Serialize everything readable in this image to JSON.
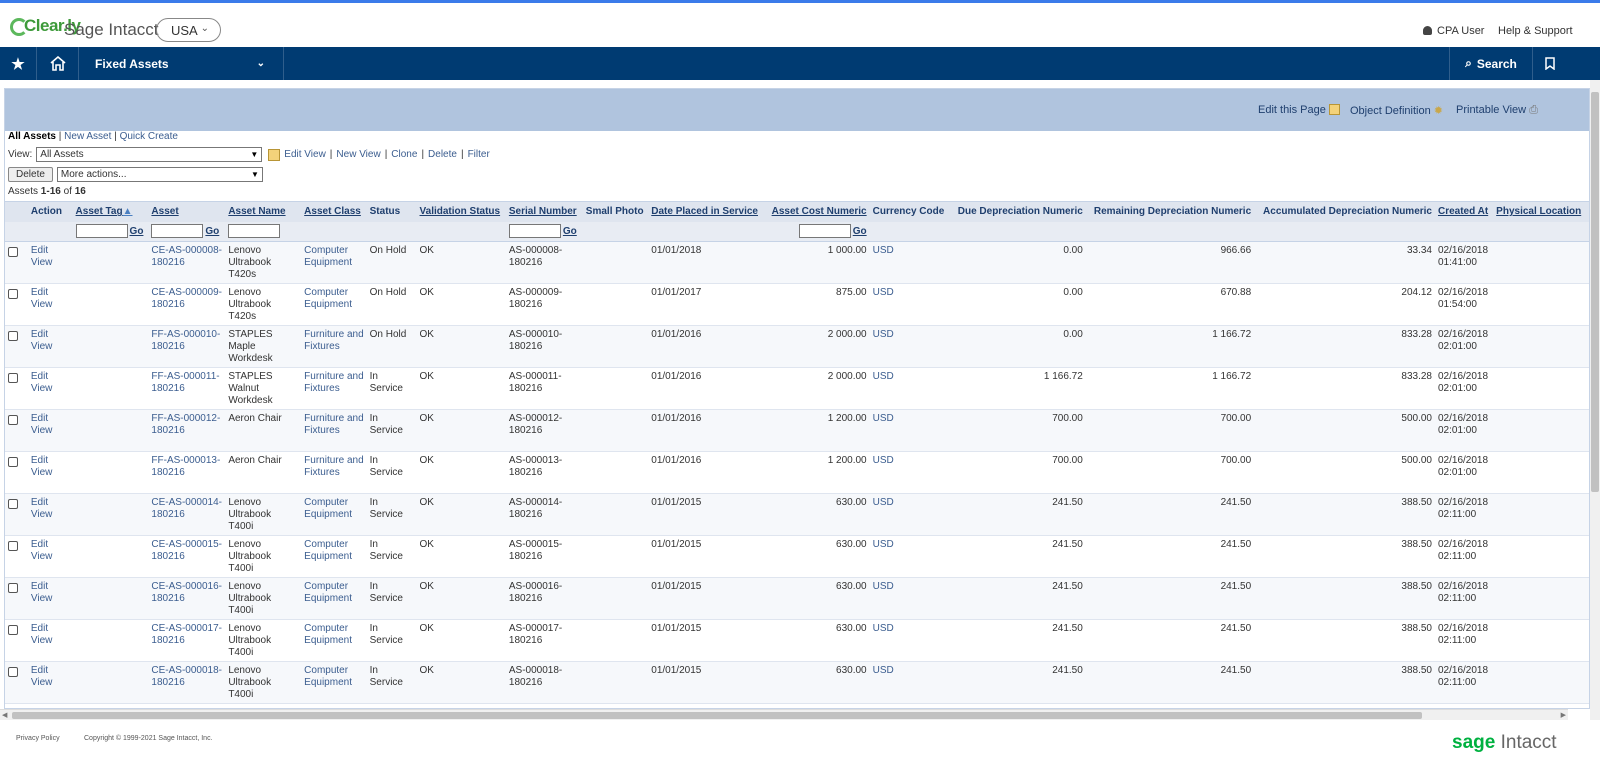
{
  "header": {
    "logo_text": "Clear.ly",
    "app_title": "Sage Intacct",
    "country": "USA",
    "user": "CPA User",
    "help": "Help & Support"
  },
  "nav": {
    "module": "Fixed Assets",
    "search": "Search"
  },
  "page": {
    "edit_page": "Edit this Page",
    "object_definition": "Object Definition",
    "printable_view": "Printable View",
    "tabs": {
      "all": "All Assets",
      "new": "New Asset",
      "quick": "Quick Create"
    },
    "view_label": "View:",
    "view_value": "All Assets",
    "view_links": [
      "Edit View",
      "New View",
      "Clone",
      "Delete",
      "Filter"
    ],
    "delete_btn": "Delete",
    "more_actions": "More actions...",
    "count_prefix": "Assets",
    "count_range": "1-16",
    "count_of": "of",
    "count_total": "16",
    "go": "Go"
  },
  "columns": [
    "Action",
    "Asset Tag",
    "Asset",
    "Asset Name",
    "Asset Class",
    "Status",
    "Validation Status",
    "Serial Number",
    "Small Photo",
    "Date Placed in Service",
    "Asset Cost Numeric",
    "Currency Code",
    "Due Depreciation Numeric",
    "Remaining Depreciation Numeric",
    "Accumulated Depreciation Numeric",
    "Created At",
    "Physical Location"
  ],
  "rows": [
    {
      "action": "Edit View",
      "asset": "CE-AS-000008-180216",
      "name": "Lenovo Ultrabook T420s",
      "class": "Computer Equipment",
      "status": "On Hold",
      "validation": "OK",
      "serial": "AS-000008-180216",
      "date": "01/01/2018",
      "cost": "1 000.00",
      "currency": "USD",
      "due": "0.00",
      "remaining": "966.66",
      "accumulated": "33.34",
      "created": "02/16/2018 01:41:00"
    },
    {
      "action": "Edit View",
      "asset": "CE-AS-000009-180216",
      "name": "Lenovo Ultrabook T420s",
      "class": "Computer Equipment",
      "status": "On Hold",
      "validation": "OK",
      "serial": "AS-000009-180216",
      "date": "01/01/2017",
      "cost": "875.00",
      "currency": "USD",
      "due": "0.00",
      "remaining": "670.88",
      "accumulated": "204.12",
      "created": "02/16/2018 01:54:00"
    },
    {
      "action": "Edit View",
      "asset": "FF-AS-000010-180216",
      "name": "STAPLES Maple Workdesk",
      "class": "Furniture and Fixtures",
      "status": "On Hold",
      "validation": "OK",
      "serial": "AS-000010-180216",
      "date": "01/01/2016",
      "cost": "2 000.00",
      "currency": "USD",
      "due": "0.00",
      "remaining": "1 166.72",
      "accumulated": "833.28",
      "created": "02/16/2018 02:01:00"
    },
    {
      "action": "Edit View",
      "asset": "FF-AS-000011-180216",
      "name": "STAPLES Walnut Workdesk",
      "class": "Furniture and Fixtures",
      "status": "In Service",
      "validation": "OK",
      "serial": "AS-000011-180216",
      "date": "01/01/2016",
      "cost": "2 000.00",
      "currency": "USD",
      "due": "1 166.72",
      "remaining": "1 166.72",
      "accumulated": "833.28",
      "created": "02/16/2018 02:01:00"
    },
    {
      "action": "Edit View",
      "asset": "FF-AS-000012-180216",
      "name": "Aeron Chair",
      "class": "Furniture and Fixtures",
      "status": "In Service",
      "validation": "OK",
      "serial": "AS-000012-180216",
      "date": "01/01/2016",
      "cost": "1 200.00",
      "currency": "USD",
      "due": "700.00",
      "remaining": "700.00",
      "accumulated": "500.00",
      "created": "02/16/2018 02:01:00"
    },
    {
      "action": "Edit View",
      "asset": "FF-AS-000013-180216",
      "name": "Aeron Chair",
      "class": "Furniture and Fixtures",
      "status": "In Service",
      "validation": "OK",
      "serial": "AS-000013-180216",
      "date": "01/01/2016",
      "cost": "1 200.00",
      "currency": "USD",
      "due": "700.00",
      "remaining": "700.00",
      "accumulated": "500.00",
      "created": "02/16/2018 02:01:00"
    },
    {
      "action": "Edit View",
      "asset": "CE-AS-000014-180216",
      "name": "Lenovo Ultrabook T400i",
      "class": "Computer Equipment",
      "status": "In Service",
      "validation": "OK",
      "serial": "AS-000014-180216",
      "date": "01/01/2015",
      "cost": "630.00",
      "currency": "USD",
      "due": "241.50",
      "remaining": "241.50",
      "accumulated": "388.50",
      "created": "02/16/2018 02:11:00"
    },
    {
      "action": "Edit View",
      "asset": "CE-AS-000015-180216",
      "name": "Lenovo Ultrabook T400i",
      "class": "Computer Equipment",
      "status": "In Service",
      "validation": "OK",
      "serial": "AS-000015-180216",
      "date": "01/01/2015",
      "cost": "630.00",
      "currency": "USD",
      "due": "241.50",
      "remaining": "241.50",
      "accumulated": "388.50",
      "created": "02/16/2018 02:11:00"
    },
    {
      "action": "Edit View",
      "asset": "CE-AS-000016-180216",
      "name": "Lenovo Ultrabook T400i",
      "class": "Computer Equipment",
      "status": "In Service",
      "validation": "OK",
      "serial": "AS-000016-180216",
      "date": "01/01/2015",
      "cost": "630.00",
      "currency": "USD",
      "due": "241.50",
      "remaining": "241.50",
      "accumulated": "388.50",
      "created": "02/16/2018 02:11:00"
    },
    {
      "action": "Edit View",
      "asset": "CE-AS-000017-180216",
      "name": "Lenovo Ultrabook T400i",
      "class": "Computer Equipment",
      "status": "In Service",
      "validation": "OK",
      "serial": "AS-000017-180216",
      "date": "01/01/2015",
      "cost": "630.00",
      "currency": "USD",
      "due": "241.50",
      "remaining": "241.50",
      "accumulated": "388.50",
      "created": "02/16/2018 02:11:00"
    },
    {
      "action": "Edit View",
      "asset": "CE-AS-000018-180216",
      "name": "Lenovo Ultrabook T400i",
      "class": "Computer Equipment",
      "status": "In Service",
      "validation": "OK",
      "serial": "AS-000018-180216",
      "date": "01/01/2015",
      "cost": "630.00",
      "currency": "USD",
      "due": "241.50",
      "remaining": "241.50",
      "accumulated": "388.50",
      "created": "02/16/2018 02:11:00"
    }
  ],
  "footer": {
    "privacy": "Privacy Policy",
    "copyright": "Copyright © 1999-2021 Sage Intacct, Inc.",
    "brand_sage": "sage",
    "brand_intacct": "Intacct"
  },
  "colors": {
    "nav": "#003b72",
    "panel_top": "#b0c4de",
    "link": "#3b5d8f",
    "brand": "#00b140"
  }
}
